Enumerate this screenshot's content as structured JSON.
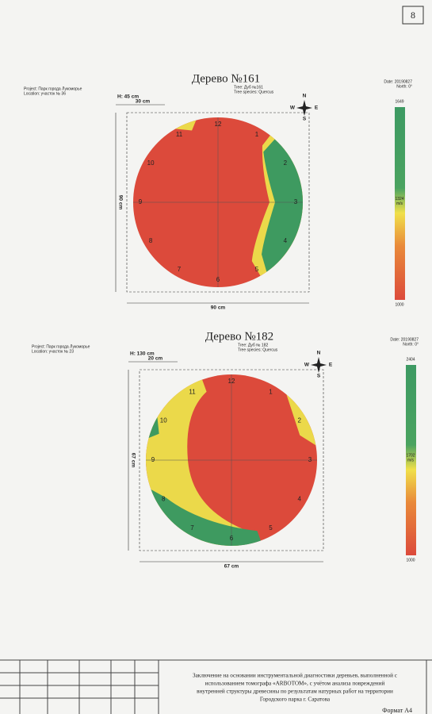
{
  "page_number": "8",
  "trees": [
    {
      "title": "Дерево №161",
      "project": "Project: Парк города Лукоморье",
      "location": "Location: участок № 36",
      "tree": "Tree: Дуб №161",
      "species": "Tree species: Quercus",
      "date": "Date: 20190827",
      "north": "North: 0°",
      "height": "H: 45 cm",
      "offset": "30 cm",
      "vertical_size": "90 cm",
      "horizontal_size": "90 cm",
      "compass": [
        "N",
        "E",
        "S",
        "W"
      ],
      "points": [
        "1",
        "2",
        "3",
        "4",
        "5",
        "6",
        "7",
        "8",
        "9",
        "10",
        "11",
        "12"
      ],
      "scale": {
        "max": "1649",
        "mid": "1324",
        "unit": "m/s",
        "min": "1000"
      }
    },
    {
      "title": "Дерево №182",
      "project": "Project: Парк города Лукоморье",
      "location": "Location: участок № 23",
      "tree": "Tree: Дуб № 182",
      "species": "Tree species: Quercus",
      "date": "Date: 20190827",
      "north": "North: 0°",
      "height": "H: 130 cm",
      "offset": "20 cm",
      "vertical_size": "67 cm",
      "horizontal_size": "67 cm",
      "compass": [
        "N",
        "E",
        "S",
        "W"
      ],
      "points": [
        "1",
        "2",
        "3",
        "4",
        "5",
        "6",
        "7",
        "8",
        "9",
        "10",
        "11",
        "12"
      ],
      "scale": {
        "max": "2404",
        "mid": "1702",
        "unit": "m/s",
        "min": "1000"
      }
    }
  ],
  "footer": {
    "lines": [
      "Заключение на основании инструментальной диагностики деревьев, выполненной с",
      "использованием томографа «ARBOTOM», с учётом анализа повреждений",
      "внутренней структуры древесины по результатам натурных работ на территории",
      "Городского парка г. Саратова"
    ],
    "format": "Формат А4"
  }
}
